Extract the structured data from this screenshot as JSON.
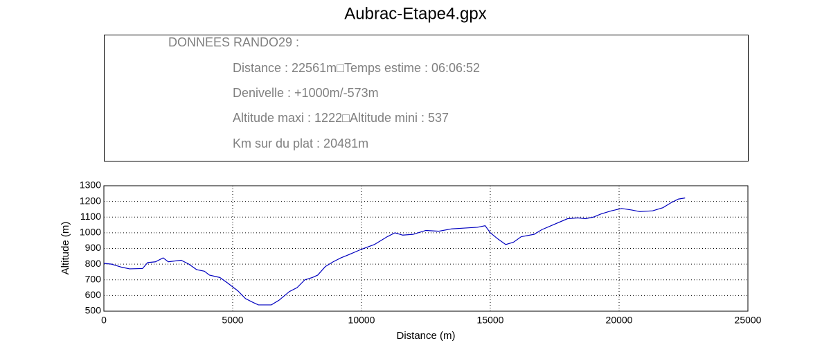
{
  "chart_data": {
    "type": "line",
    "title": "Aubrac-Etape4.gpx",
    "info": {
      "heading": "DONNEES RANDO29  :",
      "lines": [
        "Distance : 22561m□Temps estime : 06:06:52",
        "Denivelle : +1000m/-573m",
        "Altitude maxi : 1222□Altitude mini : 537",
        "Km sur du plat : 20481m"
      ]
    },
    "xlabel": "Distance (m)",
    "ylabel": "Altitude (m)",
    "x": [
      0,
      300,
      700,
      1000,
      1500,
      1700,
      2000,
      2300,
      2500,
      3000,
      3300,
      3600,
      3900,
      4100,
      4500,
      4800,
      5200,
      5500,
      5800,
      6000,
      6500,
      6800,
      7200,
      7500,
      7800,
      8100,
      8300,
      8600,
      8900,
      9200,
      9500,
      10000,
      10500,
      11000,
      11300,
      11600,
      12000,
      12500,
      13000,
      13500,
      14000,
      14500,
      14800,
      15000,
      15300,
      15600,
      15900,
      16200,
      16700,
      17000,
      17500,
      18000,
      18400,
      18700,
      19000,
      19300,
      19700,
      20100,
      20500,
      20800,
      21300,
      21700,
      22000,
      22300,
      22561
    ],
    "series": [
      {
        "color": "#0000bf",
        "values": [
          805,
          800,
          780,
          770,
          772,
          810,
          815,
          840,
          815,
          825,
          800,
          765,
          755,
          730,
          715,
          680,
          630,
          580,
          555,
          540,
          540,
          570,
          625,
          650,
          700,
          715,
          730,
          785,
          815,
          840,
          860,
          895,
          925,
          975,
          1000,
          985,
          990,
          1015,
          1010,
          1025,
          1030,
          1035,
          1045,
          1000,
          960,
          925,
          940,
          975,
          990,
          1020,
          1055,
          1090,
          1095,
          1090,
          1100,
          1120,
          1140,
          1155,
          1145,
          1135,
          1140,
          1160,
          1190,
          1215,
          1222
        ]
      }
    ],
    "xlim": [
      0,
      25000
    ],
    "ylim": [
      500,
      1300
    ],
    "xticks": [
      0,
      5000,
      10000,
      15000,
      20000,
      25000
    ],
    "yticks": [
      500,
      600,
      700,
      800,
      900,
      1000,
      1100,
      1200,
      1300
    ],
    "grid": true
  }
}
